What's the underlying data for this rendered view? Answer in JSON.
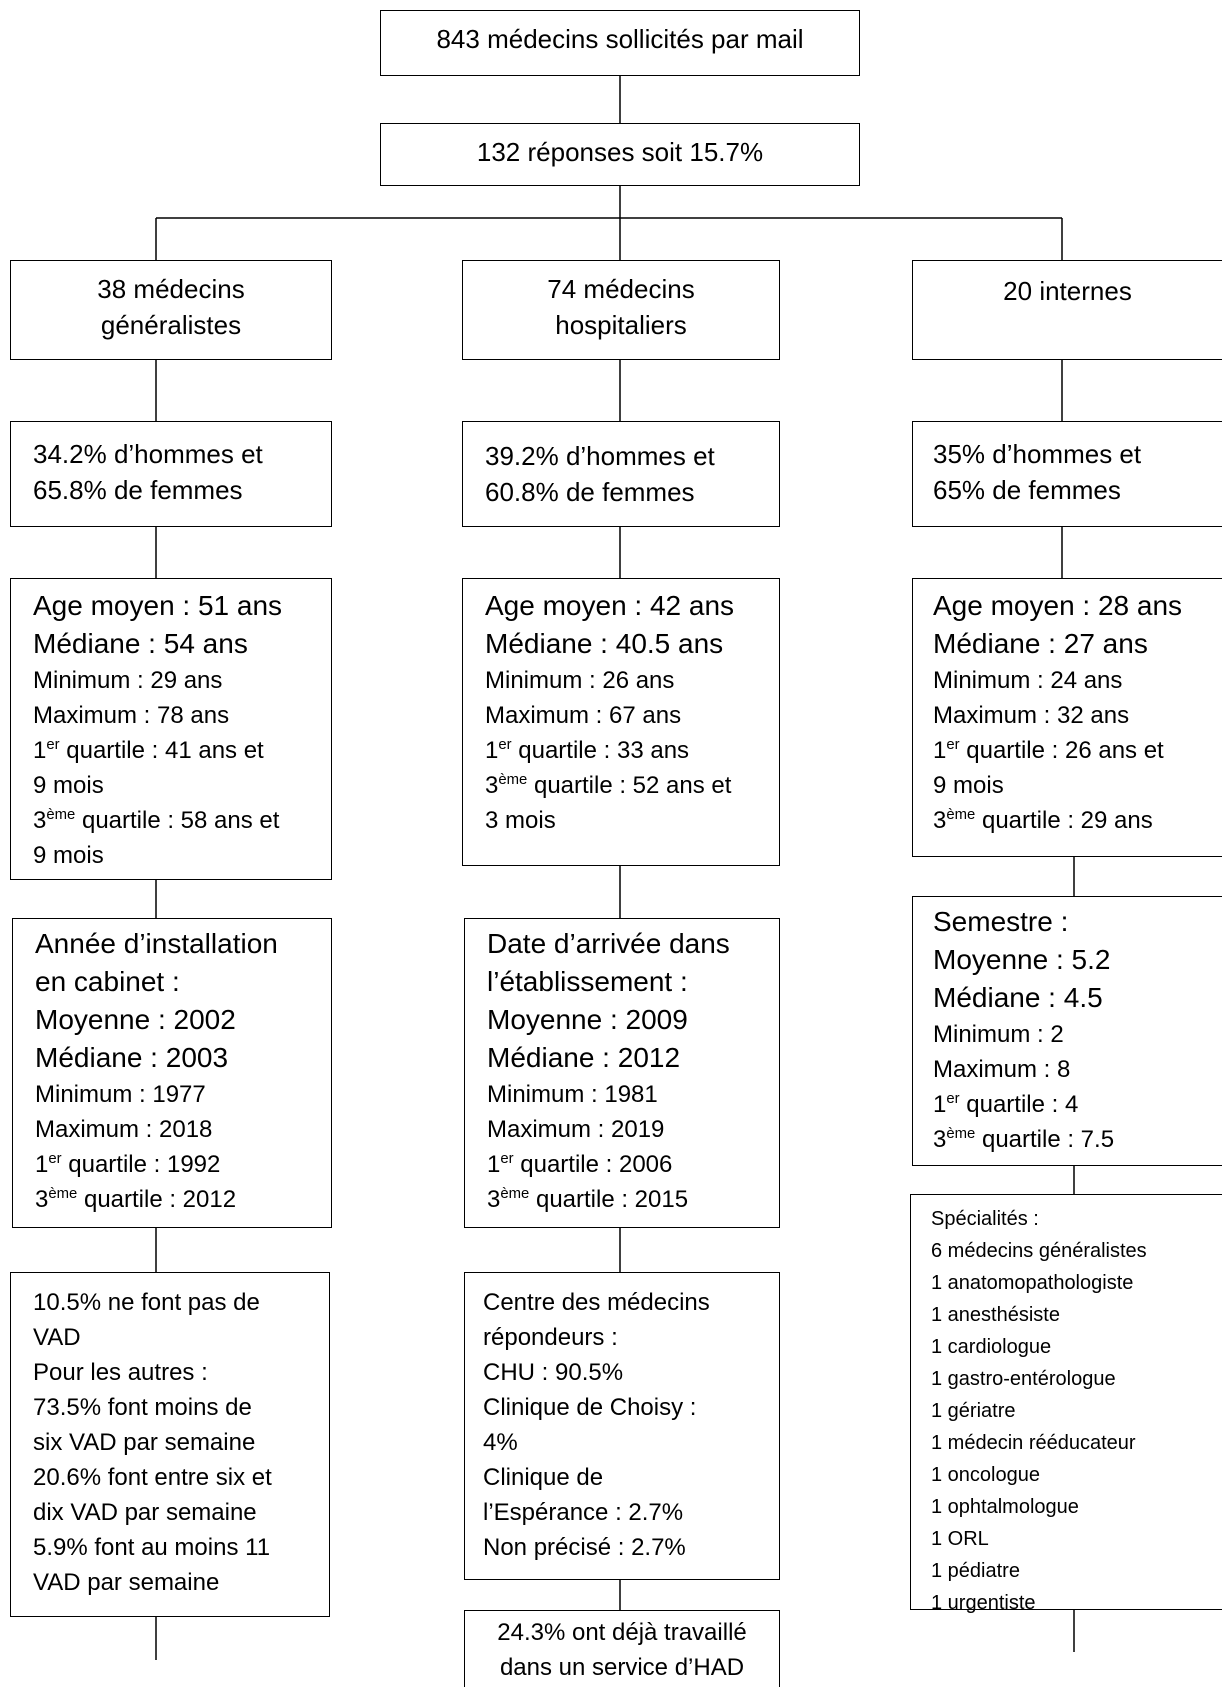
{
  "top": {
    "solicited": "843 médecins sollicités par mail",
    "responses": "132 réponses soit 15.7%"
  },
  "generalists": {
    "title": [
      "38 médecins",
      "généralistes"
    ],
    "sex": [
      "34.2% d’hommes et",
      "65.8% de femmes"
    ],
    "age_main": [
      "Age moyen : 51 ans",
      "Médiane : 54 ans"
    ],
    "age_min": "Minimum : 29 ans",
    "age_max": "Maximum : 78 ans",
    "q1": {
      "num": "1",
      "sup": "er",
      "text": " quartile : 41 ans et"
    },
    "q1_cont": "9 mois",
    "q3": {
      "num": "3",
      "sup": "ème",
      "text": " quartile : 58 ans et"
    },
    "q3_cont": "9 mois",
    "install_head": [
      "Année d’installation",
      "en cabinet :",
      "Moyenne : 2002",
      "Médiane : 2003"
    ],
    "install_min": "Minimum : 1977",
    "install_max": "Maximum : 2018",
    "install_q1": {
      "num": "1",
      "sup": "er",
      "text": " quartile : 1992"
    },
    "install_q3": {
      "num": "3",
      "sup": "ème",
      "text": " quartile : 2012"
    },
    "vad": [
      "10.5% ne font pas de",
      "VAD",
      "Pour les autres :",
      "73.5% font moins de",
      "six VAD par semaine",
      "20.6% font entre six et",
      "dix VAD par semaine",
      "5.9% font au moins 11",
      "VAD par semaine"
    ]
  },
  "hospital": {
    "title": [
      "74 médecins",
      "hospitaliers"
    ],
    "sex": [
      "39.2% d’hommes et",
      "60.8% de femmes"
    ],
    "age_main": [
      "Age moyen : 42 ans",
      "Médiane : 40.5 ans"
    ],
    "age_min": "Minimum : 26 ans",
    "age_max": "Maximum : 67 ans",
    "q1": {
      "num": "1",
      "sup": "er",
      "text": " quartile : 33 ans"
    },
    "q3": {
      "num": "3",
      "sup": "ème",
      "text": " quartile : 52 ans et"
    },
    "q3_cont": "3 mois",
    "arrival_head": [
      "Date d’arrivée dans",
      "l’établissement :",
      "Moyenne : 2009",
      "Médiane : 2012"
    ],
    "arrival_min": "Minimum : 1981",
    "arrival_max": "Maximum : 2019",
    "arrival_q1": {
      "num": "1",
      "sup": "er",
      "text": " quartile : 2006"
    },
    "arrival_q3": {
      "num": "3",
      "sup": "ème",
      "text": " quartile : 2015"
    },
    "centre": [
      "Centre des médecins",
      "répondeurs :",
      "CHU : 90.5%",
      "Clinique de Choisy :",
      "4%",
      "Clinique de",
      "l’Espérance : 2.7%",
      "Non précisé : 2.7%"
    ],
    "had": [
      "24.3% ont déjà travaillé",
      "dans un service d’HAD"
    ]
  },
  "interns": {
    "title": [
      "20 internes"
    ],
    "sex": [
      "35% d’hommes et",
      "65% de femmes"
    ],
    "age_main": [
      "Age moyen : 28 ans",
      "Médiane : 27 ans"
    ],
    "age_min": "Minimum : 24 ans",
    "age_max": "Maximum : 32 ans",
    "q1": {
      "num": "1",
      "sup": "er",
      "text": " quartile : 26 ans et"
    },
    "q1_cont": "9 mois",
    "q3": {
      "num": "3",
      "sup": "ème",
      "text": " quartile : 29 ans"
    },
    "semester_head": [
      "Semestre :",
      "Moyenne : 5.2",
      "Médiane : 4.5"
    ],
    "semester_min": "Minimum : 2",
    "semester_max": "Maximum : 8",
    "semester_q1": {
      "num": "1",
      "sup": "er",
      "text": " quartile : 4"
    },
    "semester_q3": {
      "num": "3",
      "sup": "ème",
      "text": " quartile : 7.5"
    },
    "specialties": [
      "Spécialités :",
      "6 médecins généralistes",
      "1 anatomopathologiste",
      "1 anesthésiste",
      "1 cardiologue",
      "1 gastro-entérologue",
      "1 gériatre",
      "1 médecin rééducateur",
      "1 oncologue",
      "1 ophtalmologue",
      "1 ORL",
      "1 pédiatre",
      "1 urgentiste"
    ]
  }
}
